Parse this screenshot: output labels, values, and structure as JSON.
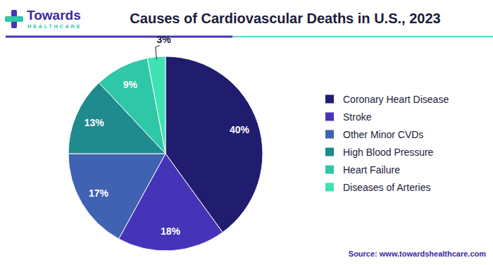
{
  "chart_data": {
    "type": "pie",
    "title": "Causes of Cardiovascular Deaths in U.S., 2023",
    "logo": {
      "name": "Towards",
      "tagline": "HEALTHCARE"
    },
    "source": "Source: www.towardshealthcare.com",
    "categories": [
      "Coronary Heart Disease",
      "Stroke",
      "Other Minor CVDs",
      "High Blood Pressure",
      "Heart Failure",
      "Diseases of Arteries"
    ],
    "values": [
      40,
      18,
      17,
      13,
      9,
      3
    ],
    "value_labels": [
      "40%",
      "18%",
      "17%",
      "13%",
      "9%",
      "3%"
    ],
    "colors": [
      "#201c6e",
      "#4634b8",
      "#3f62b3",
      "#1f8b8e",
      "#2ec7a7",
      "#3fe3b3"
    ],
    "data_labels": true,
    "legend": "right"
  }
}
